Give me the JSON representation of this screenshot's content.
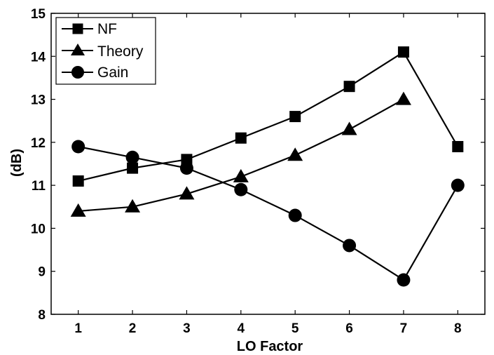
{
  "chart_data": {
    "type": "line",
    "title": "",
    "xlabel": "LO Factor",
    "ylabel": "(dB)",
    "x": [
      1,
      2,
      3,
      4,
      5,
      6,
      7,
      8
    ],
    "xlim": [
      0.5,
      8.5
    ],
    "ylim": [
      8,
      15
    ],
    "xticks": [
      "1",
      "2",
      "3",
      "4",
      "5",
      "6",
      "7",
      "8"
    ],
    "yticks": [
      "8",
      "9",
      "10",
      "11",
      "12",
      "13",
      "14",
      "15"
    ],
    "grid": false,
    "legend_position": "top-left",
    "series": [
      {
        "name": "NF",
        "marker": "square",
        "color": "#000000",
        "x": [
          1,
          2,
          3,
          4,
          5,
          6,
          7,
          8
        ],
        "values": [
          11.1,
          11.4,
          11.6,
          12.1,
          12.6,
          13.3,
          14.1,
          11.9
        ]
      },
      {
        "name": "Theory",
        "marker": "triangle",
        "color": "#000000",
        "x": [
          1,
          2,
          3,
          4,
          5,
          6,
          7
        ],
        "values": [
          10.4,
          10.5,
          10.8,
          11.2,
          11.7,
          12.3,
          13.0
        ]
      },
      {
        "name": "Gain",
        "marker": "circle",
        "color": "#000000",
        "x": [
          1,
          2,
          3,
          4,
          5,
          6,
          7,
          8
        ],
        "values": [
          11.9,
          11.65,
          11.4,
          10.9,
          10.3,
          9.6,
          8.8,
          11.0
        ]
      }
    ]
  }
}
